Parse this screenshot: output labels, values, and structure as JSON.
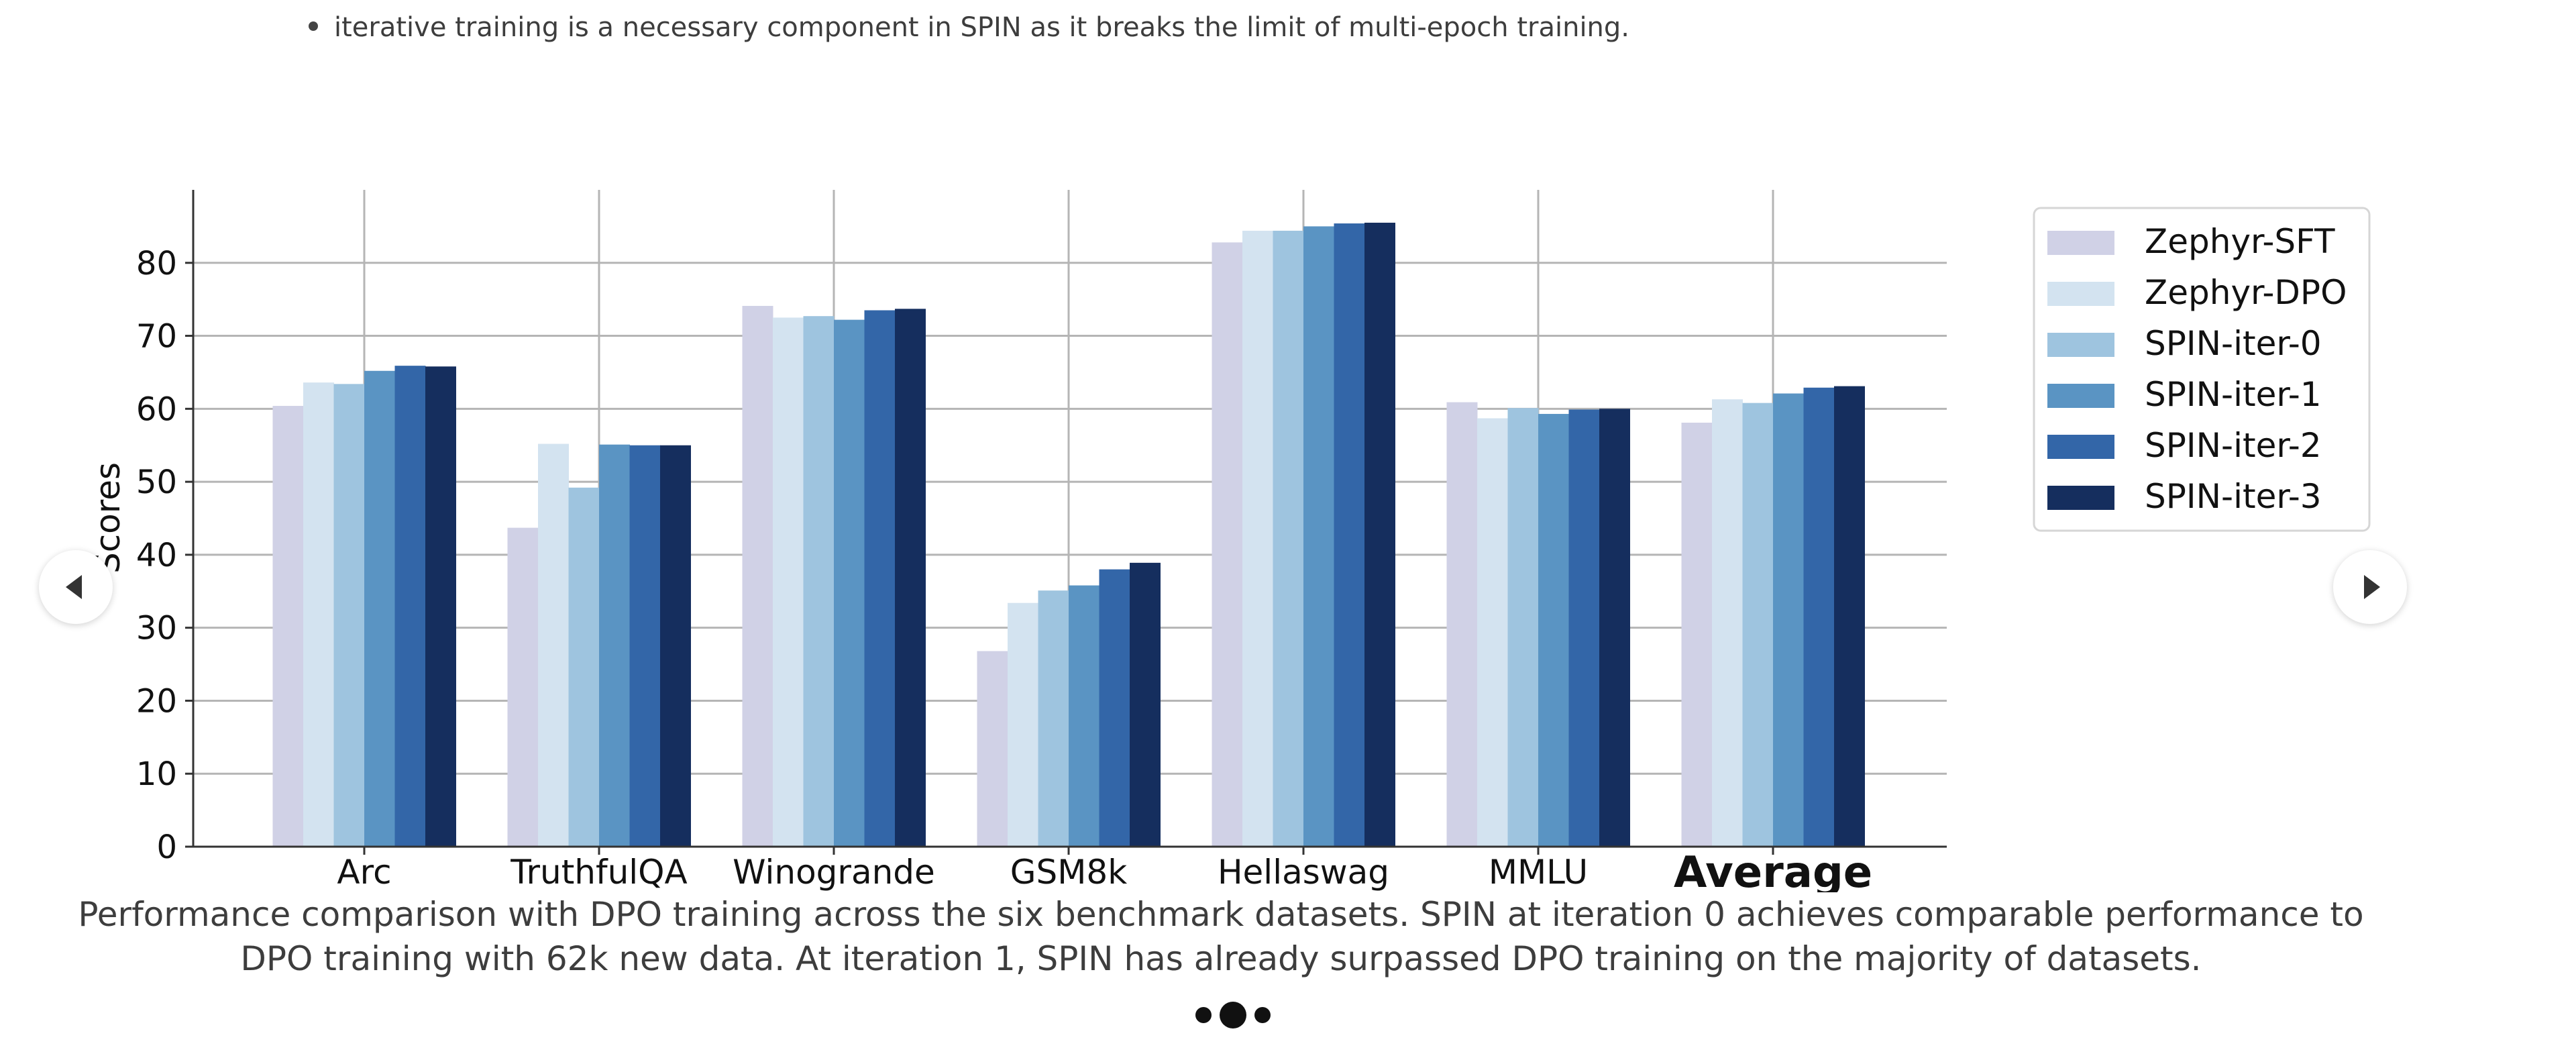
{
  "bullet_text": "iterative training is a necessary component in SPIN as it breaks the limit of multi-epoch training.",
  "caption": "Performance comparison with DPO training across the six benchmark datasets. SPIN at iteration 0 achieves comparable performance to DPO training with 62k new data. At iteration 1, SPIN has already surpassed DPO training on the majority of datasets.",
  "chart_data": {
    "type": "bar",
    "categories": [
      "Arc",
      "TruthfulQA",
      "Winogrande",
      "GSM8k",
      "Hellaswag",
      "MMLU",
      "Average"
    ],
    "ylabel": "Scores",
    "xlabel": "",
    "ylim": [
      0,
      90
    ],
    "yticks": [
      0,
      10,
      20,
      30,
      40,
      50,
      60,
      70,
      80
    ],
    "grid": true,
    "legend_position": "top-right",
    "series": [
      {
        "name": "Zephyr-SFT",
        "color": "#d0d1e6",
        "values": [
          60.4,
          43.7,
          74.1,
          26.8,
          82.8,
          60.9,
          58.1
        ]
      },
      {
        "name": "Zephyr-DPO",
        "color": "#d3e3f0",
        "values": [
          63.6,
          55.2,
          72.5,
          33.4,
          84.4,
          58.7,
          61.3
        ]
      },
      {
        "name": "SPIN-iter-0",
        "color": "#9ec4df",
        "values": [
          63.4,
          49.2,
          72.7,
          35.1,
          84.4,
          60.1,
          60.8
        ]
      },
      {
        "name": "SPIN-iter-1",
        "color": "#5a94c3",
        "values": [
          65.2,
          55.1,
          72.2,
          35.8,
          85.0,
          59.3,
          62.1
        ]
      },
      {
        "name": "SPIN-iter-2",
        "color": "#3366a8",
        "values": [
          65.9,
          55.0,
          73.5,
          38.0,
          85.4,
          59.9,
          62.9
        ]
      },
      {
        "name": "SPIN-iter-3",
        "color": "#152e5e",
        "values": [
          65.8,
          55.0,
          73.7,
          38.9,
          85.5,
          60.0,
          63.1
        ]
      }
    ]
  }
}
